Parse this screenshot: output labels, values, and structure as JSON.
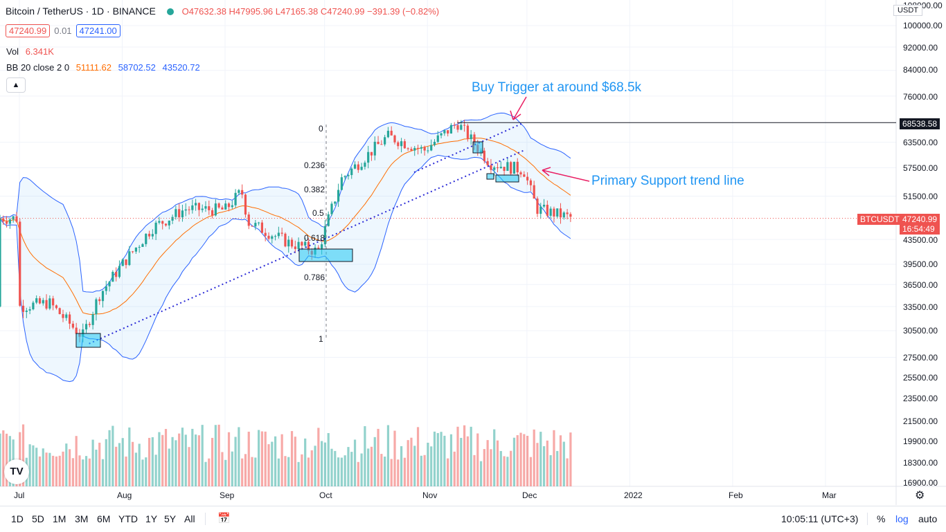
{
  "header": {
    "symbol": "Bitcoin / TetherUS · 1D · BINANCE",
    "ohlc": "O47632.38 H47995.96 L47165.38 C47240.99 −391.39 (−0.82%)",
    "bid": "47240.99",
    "spread": "0.01",
    "ask": "47241.00",
    "vol_label": "Vol",
    "vol_value": "6.341K",
    "bb_label": "BB 20 close 2 0",
    "bb_mid": "51111.62",
    "bb_upper": "58702.52",
    "bb_lower": "43520.72",
    "collapse_icon": "chevron-up-icon"
  },
  "currency": "USDT",
  "annotations": {
    "buy_trigger": "Buy Trigger at around $68.5k",
    "support": "Primary Support trend line"
  },
  "fib_levels": [
    "0",
    "0.236",
    "0.382",
    "0.5",
    "0.618",
    "0.786",
    "1"
  ],
  "price_axis": {
    "ticks": [
      "100000.00",
      "92000.00",
      "84000.00",
      "76000.00",
      "68538.58",
      "63500.00",
      "57500.00",
      "51500.00",
      "47240.99",
      "43500.00",
      "39500.00",
      "36500.00",
      "33500.00",
      "30500.00",
      "27500.00",
      "25500.00",
      "23500.00",
      "21500.00",
      "19900.00",
      "18300.00",
      "16900.00"
    ],
    "level_tag": "68538.58",
    "symbol_tag": "BTCUSDT",
    "last_price": "47240.99",
    "countdown": "16:54:49",
    "top_partial": "108000.00"
  },
  "time_axis": [
    "Jul",
    "Aug",
    "Sep",
    "Oct",
    "Nov",
    "Dec",
    "2022",
    "Feb",
    "Mar"
  ],
  "toolbar": {
    "timeframes": [
      "1D",
      "5D",
      "1M",
      "3M",
      "6M",
      "YTD",
      "1Y",
      "5Y",
      "All"
    ],
    "clock": "10:05:11 (UTC+3)",
    "percent": "%",
    "log": "log",
    "auto": "auto",
    "logo": "TV"
  },
  "colors": {
    "up": "#26a69a",
    "down": "#ef5350",
    "bb_band": "#2962ff",
    "bb_basis": "#ff6d00",
    "annotation": "#2196f3",
    "arrow": "#e91e63",
    "trend": "#2a2ad6"
  },
  "chart_data": {
    "type": "candlestick",
    "timeframe": "1D",
    "y_scale": "log",
    "ylim": [
      16900,
      108000
    ],
    "series_close": [
      [
        "2021-07-01",
        33500
      ],
      [
        "2021-07-10",
        34000
      ],
      [
        "2021-07-20",
        29800
      ],
      [
        "2021-07-25",
        35000
      ],
      [
        "2021-08-01",
        39500
      ],
      [
        "2021-08-10",
        45500
      ],
      [
        "2021-08-20",
        49000
      ],
      [
        "2021-09-01",
        48800
      ],
      [
        "2021-09-06",
        52500
      ],
      [
        "2021-09-08",
        46500
      ],
      [
        "2021-09-20",
        43000
      ],
      [
        "2021-09-29",
        41500
      ],
      [
        "2021-10-06",
        55000
      ],
      [
        "2021-10-20",
        65000
      ],
      [
        "2021-10-31",
        61500
      ],
      [
        "2021-11-10",
        68500
      ],
      [
        "2021-11-20",
        58500
      ],
      [
        "2021-11-30",
        57000
      ],
      [
        "2021-12-04",
        49000
      ],
      [
        "2021-12-15",
        47240.99
      ]
    ],
    "bollinger": {
      "period": 20,
      "stddev": 2,
      "basis": 51111.62,
      "upper": 58702.52,
      "lower": 43520.72
    },
    "volume_last": 6341,
    "fibonacci": [
      "0",
      "0.236",
      "0.382",
      "0.5",
      "0.618",
      "0.786",
      "1"
    ],
    "resistance": 68538.58
  }
}
